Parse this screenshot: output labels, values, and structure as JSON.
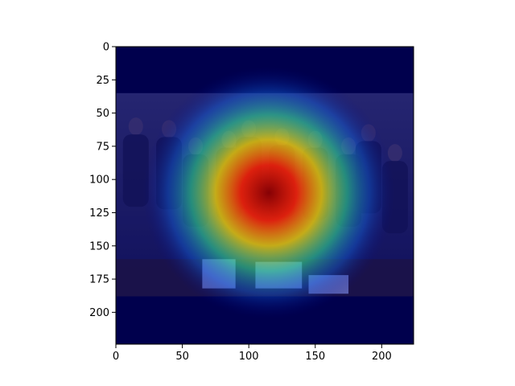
{
  "chart_data": {
    "type": "heatmap",
    "title": "",
    "xlabel": "",
    "ylabel": "",
    "xlim": [
      0,
      224
    ],
    "ylim": [
      224,
      0
    ],
    "x_ticks": [
      {
        "value": 0,
        "label": "0"
      },
      {
        "value": 50,
        "label": "50"
      },
      {
        "value": 100,
        "label": "100"
      },
      {
        "value": 150,
        "label": "150"
      },
      {
        "value": 200,
        "label": "200"
      }
    ],
    "y_ticks": [
      {
        "value": 0,
        "label": "0"
      },
      {
        "value": 25,
        "label": "25"
      },
      {
        "value": 50,
        "label": "50"
      },
      {
        "value": 75,
        "label": "75"
      },
      {
        "value": 100,
        "label": "100"
      },
      {
        "value": 125,
        "label": "125"
      },
      {
        "value": 150,
        "label": "150"
      },
      {
        "value": 175,
        "label": "175"
      },
      {
        "value": 200,
        "label": "200"
      }
    ],
    "colormap": "jet",
    "overlay_alpha": 0.45,
    "hotspot_center": [
      115,
      110
    ],
    "photo_top_row": 35,
    "photo_bottom_row": 188,
    "colors": {
      "frame_background": "#000033",
      "colormap_low": "#00007f",
      "colormap_high": "#7f0000",
      "axis": "#000000"
    },
    "grid": false,
    "legend": "none"
  }
}
